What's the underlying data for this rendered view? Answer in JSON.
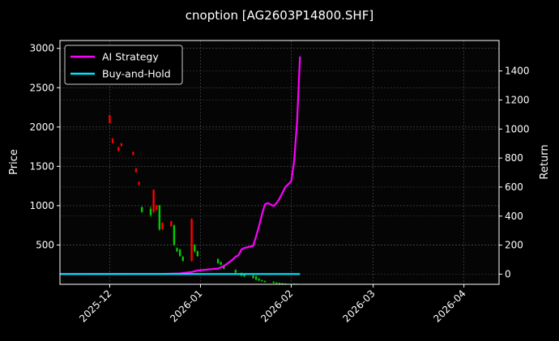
{
  "chart_data": {
    "type": "line",
    "title": "cnoption [AG2603P14800.SHF]",
    "ylabel_left": "Price",
    "ylabel_right": "Return",
    "background": "#000000",
    "grid": true,
    "legend_position": "top-left",
    "x_ticks": [
      "2025-12",
      "2026-01",
      "2026-02",
      "2026-03",
      "2026-04"
    ],
    "y_left_ticks": [
      500,
      1000,
      1500,
      2000,
      2500,
      3000
    ],
    "y_right_ticks": [
      0,
      200,
      400,
      600,
      800,
      1000,
      1200,
      1400
    ],
    "xlim": [
      "2025-11-14",
      "2026-04-13"
    ],
    "ylim_left": [
      0,
      3100
    ],
    "ylim_right": [
      -70,
      1610
    ],
    "colors": {
      "up": "#ff0000",
      "down": "#00cc00",
      "ai": "#ff00ff",
      "buyhold": "#00e5ff"
    },
    "series": [
      {
        "name": "AI Strategy",
        "axis": "right",
        "points": [
          [
            "2025-11-14",
            1
          ],
          [
            "2025-12-20",
            2
          ],
          [
            "2025-12-25",
            5
          ],
          [
            "2025-12-29",
            15
          ],
          [
            "2025-12-31",
            25
          ],
          [
            "2026-01-05",
            35
          ],
          [
            "2026-01-07",
            38
          ],
          [
            "2026-01-09",
            55
          ],
          [
            "2026-01-12",
            100
          ],
          [
            "2026-01-13",
            120
          ],
          [
            "2026-01-14",
            130
          ],
          [
            "2026-01-15",
            170
          ],
          [
            "2026-01-16",
            180
          ],
          [
            "2026-01-19",
            195
          ],
          [
            "2026-01-20",
            260
          ],
          [
            "2026-01-21",
            330
          ],
          [
            "2026-01-22",
            410
          ],
          [
            "2026-01-23",
            480
          ],
          [
            "2026-01-24",
            490
          ],
          [
            "2026-01-26",
            470
          ],
          [
            "2026-01-27",
            490
          ],
          [
            "2026-01-28",
            520
          ],
          [
            "2026-01-29",
            560
          ],
          [
            "2026-01-30",
            600
          ],
          [
            "2026-02-01",
            640
          ],
          [
            "2026-02-02",
            780
          ],
          [
            "2026-02-03",
            1050
          ],
          [
            "2026-02-04",
            1500
          ]
        ]
      },
      {
        "name": "Buy-and-Hold",
        "axis": "right",
        "points": [
          [
            "2025-11-14",
            1
          ],
          [
            "2026-02-04",
            1
          ]
        ]
      }
    ],
    "candles": [
      {
        "d": "2025-12-01",
        "o": 2050,
        "c": 2150,
        "h": 2160,
        "l": 2040
      },
      {
        "d": "2025-12-02",
        "o": 1800,
        "c": 1850,
        "h": 1860,
        "l": 1790
      },
      {
        "d": "2025-12-04",
        "o": 1700,
        "c": 1740,
        "h": 1750,
        "l": 1690
      },
      {
        "d": "2025-12-05",
        "o": 1760,
        "c": 1790,
        "h": 1800,
        "l": 1750
      },
      {
        "d": "2025-12-09",
        "o": 1650,
        "c": 1680,
        "h": 1690,
        "l": 1640
      },
      {
        "d": "2025-12-10",
        "o": 1430,
        "c": 1470,
        "h": 1480,
        "l": 1420
      },
      {
        "d": "2025-12-11",
        "o": 1270,
        "c": 1300,
        "h": 1310,
        "l": 1260
      },
      {
        "d": "2025-12-12",
        "o": 980,
        "c": 920,
        "h": 990,
        "l": 910
      },
      {
        "d": "2025-12-15",
        "o": 960,
        "c": 880,
        "h": 990,
        "l": 860
      },
      {
        "d": "2025-12-16",
        "o": 920,
        "c": 1200,
        "h": 1210,
        "l": 900
      },
      {
        "d": "2025-12-17",
        "o": 950,
        "c": 1000,
        "h": 1010,
        "l": 940
      },
      {
        "d": "2025-12-18",
        "o": 1000,
        "c": 700,
        "h": 1010,
        "l": 680
      },
      {
        "d": "2025-12-19",
        "o": 700,
        "c": 780,
        "h": 790,
        "l": 690
      },
      {
        "d": "2025-12-22",
        "o": 740,
        "c": 800,
        "h": 810,
        "l": 730
      },
      {
        "d": "2025-12-23",
        "o": 750,
        "c": 500,
        "h": 760,
        "l": 490
      },
      {
        "d": "2025-12-24",
        "o": 460,
        "c": 420,
        "h": 470,
        "l": 410
      },
      {
        "d": "2025-12-25",
        "o": 440,
        "c": 360,
        "h": 450,
        "l": 350
      },
      {
        "d": "2025-12-26",
        "o": 350,
        "c": 300,
        "h": 360,
        "l": 290
      },
      {
        "d": "2025-12-29",
        "o": 300,
        "c": 830,
        "h": 840,
        "l": 290
      },
      {
        "d": "2025-12-30",
        "o": 500,
        "c": 420,
        "h": 510,
        "l": 400
      },
      {
        "d": "2025-12-31",
        "o": 420,
        "c": 360,
        "h": 430,
        "l": 350
      },
      {
        "d": "2026-01-07",
        "o": 320,
        "c": 270,
        "h": 330,
        "l": 260
      },
      {
        "d": "2026-01-08",
        "o": 280,
        "c": 250,
        "h": 290,
        "l": 240
      },
      {
        "d": "2026-01-09",
        "o": 240,
        "c": 200,
        "h": 250,
        "l": 190
      },
      {
        "d": "2026-01-13",
        "o": 180,
        "c": 150,
        "h": 190,
        "l": 140
      },
      {
        "d": "2026-01-15",
        "o": 140,
        "c": 110,
        "h": 150,
        "l": 100
      },
      {
        "d": "2026-01-16",
        "o": 130,
        "c": 100,
        "h": 140,
        "l": 90
      },
      {
        "d": "2026-01-19",
        "o": 110,
        "c": 80,
        "h": 120,
        "l": 70
      },
      {
        "d": "2026-01-20",
        "o": 100,
        "c": 60,
        "h": 110,
        "l": 50
      },
      {
        "d": "2026-01-21",
        "o": 70,
        "c": 50,
        "h": 80,
        "l": 40
      },
      {
        "d": "2026-01-22",
        "o": 50,
        "c": 40,
        "h": 60,
        "l": 30
      },
      {
        "d": "2026-01-23",
        "o": 40,
        "c": 30,
        "h": 50,
        "l": 20
      },
      {
        "d": "2026-01-26",
        "o": 30,
        "c": 20,
        "h": 40,
        "l": 10
      },
      {
        "d": "2026-01-27",
        "o": 20,
        "c": 15,
        "h": 30,
        "l": 10
      },
      {
        "d": "2026-01-28",
        "o": 15,
        "c": 10,
        "h": 20,
        "l": 5
      },
      {
        "d": "2026-01-29",
        "o": 12,
        "c": 8,
        "h": 15,
        "l": 5
      },
      {
        "d": "2026-01-30",
        "o": 10,
        "c": 8,
        "h": 12,
        "l": 5
      },
      {
        "d": "2026-02-02",
        "o": 8,
        "c": 6,
        "h": 10,
        "l": 4
      },
      {
        "d": "2026-02-03",
        "o": 6,
        "c": 5,
        "h": 8,
        "l": 3
      }
    ]
  }
}
